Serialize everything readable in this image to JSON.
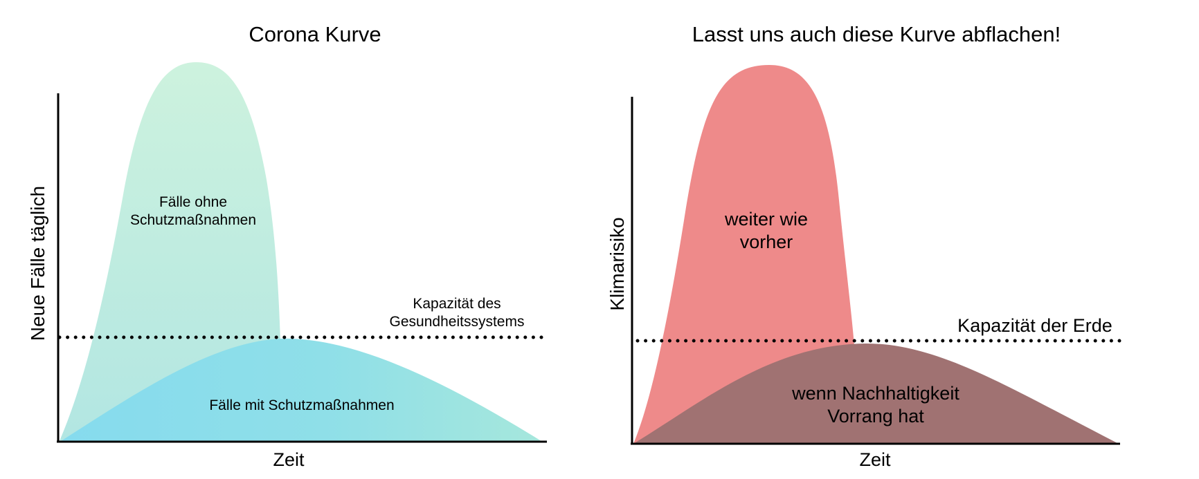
{
  "left_panel": {
    "title": "Corona Kurve",
    "y_axis_label": "Neue Fälle täglich",
    "x_axis_label": "Zeit",
    "curve_without_measures": [
      "Fälle ohne",
      "Schutzmaßnahmen"
    ],
    "curve_with_measures": "Fälle mit Schutzmaßnahmen",
    "capacity_label": [
      "Kapazität des",
      "Gesundheitssystems"
    ],
    "colors": {
      "tall_curve": "#c6eedd",
      "flat_curve": "#8fdde8",
      "capacity_line": "#000000"
    }
  },
  "right_panel": {
    "title": "Lasst uns auch diese Kurve abflachen!",
    "y_axis_label": "Klimarisiko",
    "x_axis_label": "Zeit",
    "curve_business_as_usual": [
      "weiter wie",
      "vorher"
    ],
    "curve_sustainability": [
      "wenn Nachhaltigkeit",
      "Vorrang hat"
    ],
    "capacity_label": "Kapazität der Erde",
    "colors": {
      "tall_curve": "#ee8a8a",
      "flat_curve": "#a07070",
      "capacity_line": "#000000"
    }
  }
}
